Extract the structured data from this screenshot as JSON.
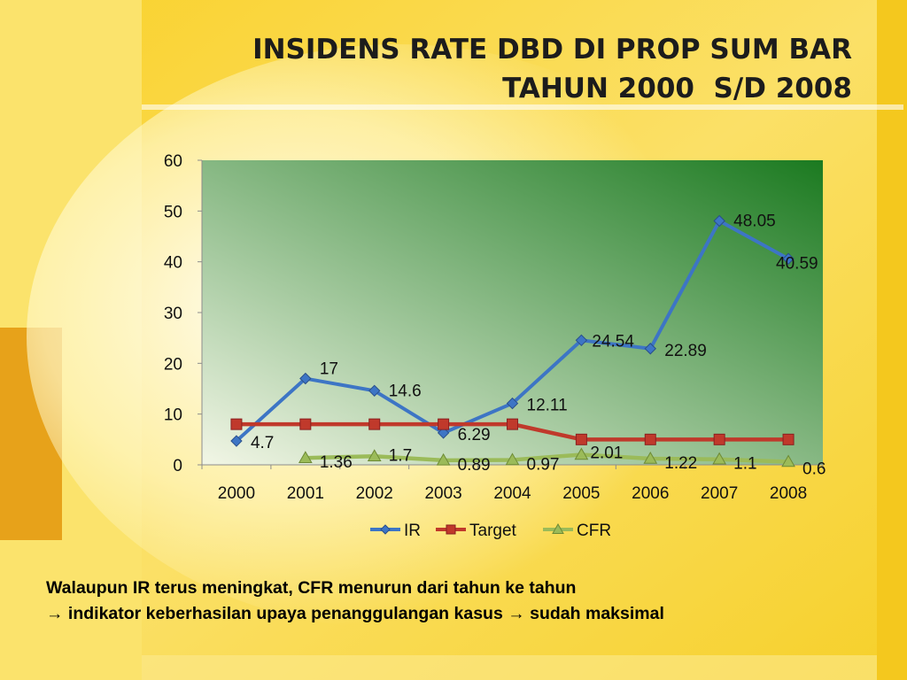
{
  "slide": {
    "title_lines": [
      "INSIDENS RATE DBD DI PROP SUM BAR",
      "TAHUN 2000  S/D 2008"
    ],
    "caption_lines": [
      "Walaupun IR terus meningkat, CFR menurun dari tahun ke tahun",
      "→ indikator keberhasilan upaya penanggulangan kasus → sudah maksimal"
    ]
  },
  "colors": {
    "ir": "#3d75c5",
    "target": "#c0392b",
    "cfr": "#9bbb59",
    "plot_light": "#f2f6e6",
    "plot_dark": "#1b7a20",
    "background": "#fff3a6"
  },
  "chart_data": {
    "type": "line",
    "categories": [
      "2000",
      "2001",
      "2002",
      "2003",
      "2004",
      "2005",
      "2006",
      "2007",
      "2008"
    ],
    "ylim": [
      0,
      60
    ],
    "yticks": [
      "0",
      "10",
      "20",
      "30",
      "40",
      "50",
      "60"
    ],
    "legend_position": "bottom",
    "grid": false,
    "series": [
      {
        "name": "IR",
        "marker": "diamond",
        "values": [
          4.7,
          17,
          14.6,
          6.29,
          12.11,
          24.54,
          22.89,
          48.05,
          40.59
        ],
        "labels": [
          "4.7",
          "17",
          "14.6",
          "6.29",
          "12.11",
          "24.54",
          "22.89",
          "48.05",
          "40.59"
        ]
      },
      {
        "name": "Target",
        "marker": "square",
        "values": [
          8,
          8,
          8,
          8,
          8,
          5,
          5,
          5,
          5
        ],
        "labels": []
      },
      {
        "name": "CFR",
        "marker": "triangle",
        "values": [
          null,
          1.36,
          1.7,
          0.89,
          0.97,
          2.01,
          1.22,
          1.1,
          0.6
        ],
        "labels": [
          "",
          "1.36",
          "1.7",
          "0.89",
          "0.97",
          "2.01",
          "1.22",
          "1.1",
          "0.6"
        ]
      }
    ]
  }
}
